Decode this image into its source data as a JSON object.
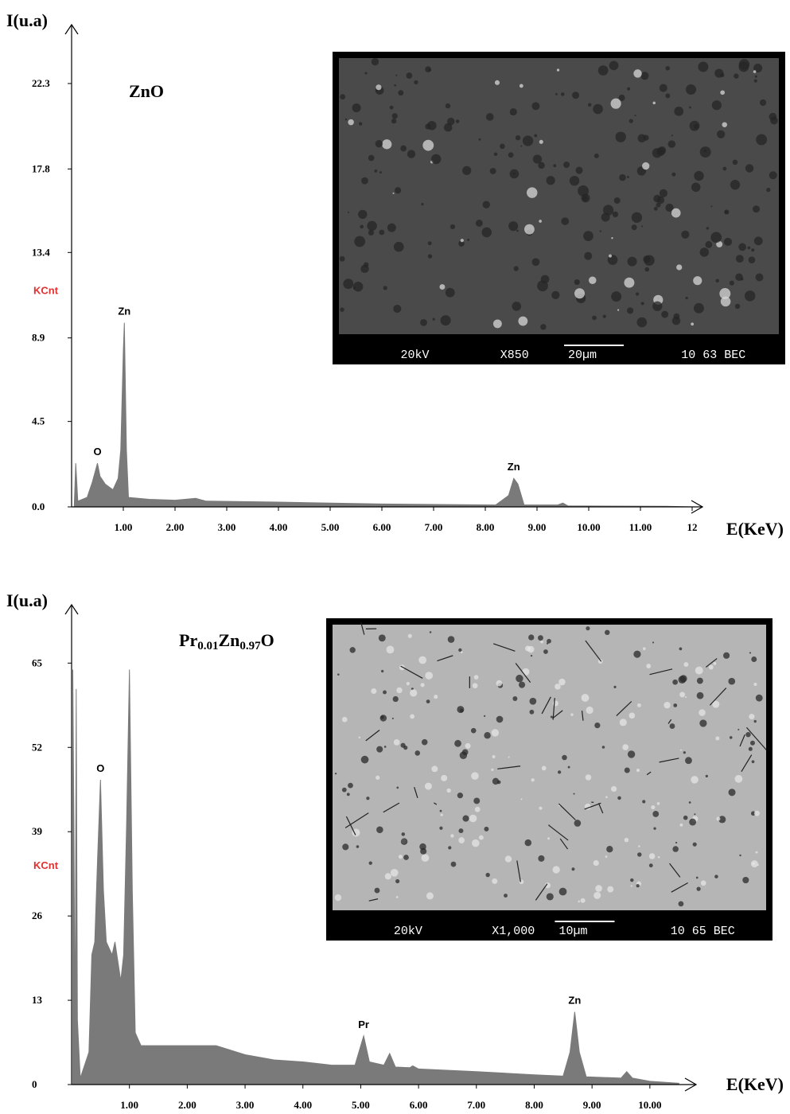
{
  "chart_data": [
    {
      "type": "area",
      "title": "ZnO",
      "y_label": "I(u.a)",
      "x_label": "E(KeV)",
      "unit_label": "KCnt",
      "color": "#7a7a7a",
      "xlim": [
        0,
        12.2
      ],
      "ylim": [
        0,
        25.4
      ],
      "xticks": [
        {
          "value": 1,
          "label": "1.00"
        },
        {
          "value": 2,
          "label": "2.00"
        },
        {
          "value": 3,
          "label": "3.00"
        },
        {
          "value": 4,
          "label": "4.00"
        },
        {
          "value": 5,
          "label": "5.00"
        },
        {
          "value": 6,
          "label": "6.00"
        },
        {
          "value": 7,
          "label": "7.00"
        },
        {
          "value": 8,
          "label": "8.00"
        },
        {
          "value": 9,
          "label": "9.00"
        },
        {
          "value": 10,
          "label": "10.00"
        },
        {
          "value": 11,
          "label": "11.00"
        },
        12
      ],
      "yticks": [
        {
          "value": 0,
          "label": "0.0"
        },
        4.5,
        8.9,
        13.4,
        17.8,
        22.3
      ],
      "x": [
        0.05,
        0.08,
        0.12,
        0.3,
        0.4,
        0.5,
        0.55,
        0.65,
        0.8,
        0.9,
        0.95,
        1.0,
        1.02,
        1.06,
        1.1,
        1.5,
        2.0,
        2.4,
        2.6,
        4.0,
        6.0,
        8.2,
        8.45,
        8.55,
        8.63,
        8.75,
        9.4,
        9.5,
        9.6,
        11.5,
        12.0
      ],
      "values": [
        0,
        2.3,
        0.3,
        0.5,
        1.3,
        2.3,
        1.6,
        1.2,
        0.9,
        1.5,
        3,
        8.2,
        9.7,
        3,
        0.5,
        0.4,
        0.35,
        0.45,
        0.3,
        0.25,
        0.15,
        0.1,
        0.6,
        1.5,
        1.2,
        0.1,
        0.1,
        0.2,
        0.05,
        0.03,
        0
      ],
      "annotations": [
        {
          "text": "O",
          "x": 0.5
        },
        {
          "text": "Zn",
          "x": 1.02
        },
        {
          "text": "Zn",
          "x": 8.55
        }
      ],
      "inset": {
        "labels": [
          "20kV",
          "X850",
          "20µm",
          "10 63 BEC"
        ]
      }
    },
    {
      "type": "area",
      "title": [
        "Pr",
        "0.01",
        "Zn",
        "0.97",
        "O"
      ],
      "y_label": "I(u.a)",
      "x_label": "E(KeV)",
      "unit_label": "KCnt",
      "color": "#7a7a7a",
      "xlim": [
        0,
        10.8
      ],
      "ylim": [
        0,
        74
      ],
      "xticks": [
        {
          "value": 1,
          "label": "1.00"
        },
        {
          "value": 2,
          "label": "2.00"
        },
        {
          "value": 3,
          "label": "3.00"
        },
        {
          "value": 4,
          "label": "4.00"
        },
        {
          "value": 5,
          "label": "5.00"
        },
        {
          "value": 6,
          "label": "6.00"
        },
        {
          "value": 7,
          "label": "7.00"
        },
        {
          "value": 8,
          "label": "8.00"
        },
        {
          "value": 9,
          "label": "9.00"
        },
        {
          "value": 10,
          "label": "10.00"
        }
      ],
      "yticks": [
        0,
        13,
        26,
        39,
        52,
        65
      ],
      "x": [
        0.02,
        0.04,
        0.06,
        0.08,
        0.1,
        0.15,
        0.3,
        0.35,
        0.4,
        0.45,
        0.5,
        0.55,
        0.6,
        0.7,
        0.75,
        0.85,
        0.9,
        0.95,
        1.0,
        1.05,
        1.1,
        1.2,
        2.0,
        2.5,
        3.0,
        3.5,
        4.0,
        4.5,
        4.9,
        5.05,
        5.15,
        5.4,
        5.5,
        5.6,
        5.85,
        5.9,
        6.0,
        7.0,
        8.0,
        8.5,
        8.62,
        8.7,
        8.78,
        8.9,
        9.5,
        9.6,
        9.7,
        10.0,
        10.5
      ],
      "values": [
        64,
        40,
        5,
        61,
        10,
        1,
        5,
        20,
        22,
        35,
        47,
        30,
        22,
        20,
        22,
        16,
        20,
        40,
        64,
        30,
        8,
        6,
        6,
        6,
        4.6,
        3.8,
        3.5,
        3,
        3,
        7.5,
        3.5,
        3,
        4.8,
        2.7,
        2.6,
        2.9,
        2.4,
        2,
        1.5,
        1.3,
        5,
        11.2,
        5,
        1.2,
        1,
        2,
        1,
        0.5,
        0.2
      ],
      "annotations": [
        {
          "text": "O",
          "x": 0.5
        },
        {
          "text": "Pr",
          "x": 5.05
        },
        {
          "text": "Zn",
          "x": 8.7
        }
      ],
      "inset": {
        "labels": [
          "20kV",
          "X1,000",
          "10µm",
          "10 65 BEC"
        ]
      }
    }
  ]
}
